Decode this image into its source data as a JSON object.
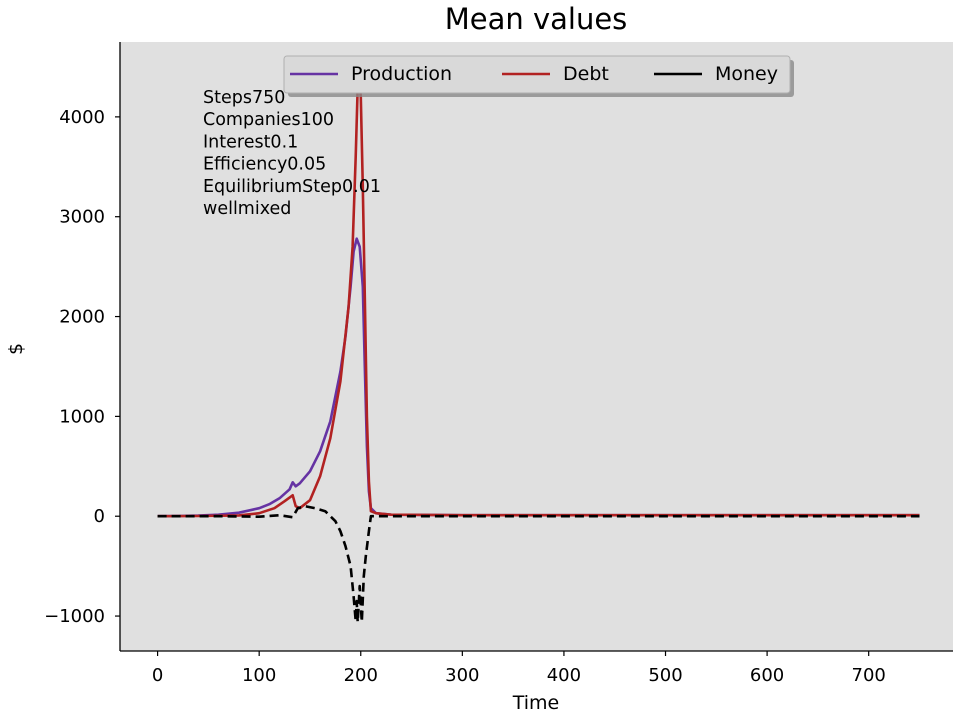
{
  "chart_data": {
    "type": "line",
    "title": "Mean values",
    "xlabel": "Time",
    "ylabel": "$",
    "xlim": [
      -37,
      783
    ],
    "ylim": [
      -1350,
      4750
    ],
    "xticks": [
      0,
      100,
      200,
      300,
      400,
      500,
      600,
      700
    ],
    "yticks": [
      -1000,
      0,
      1000,
      2000,
      3000,
      4000
    ],
    "xtick_labels": [
      "0",
      "100",
      "200",
      "300",
      "400",
      "500",
      "600",
      "700"
    ],
    "ytick_labels": [
      "−1000",
      "0",
      "1000",
      "2000",
      "3000",
      "4000"
    ],
    "background": "#e0e0e0",
    "grid": false,
    "legend_position": "top-center",
    "annotation_lines": [
      "Steps750",
      "Companies100",
      "Interest0.1",
      "Efficiency0.05",
      "EquilibriumStep0.01",
      "wellmixed"
    ],
    "series": [
      {
        "name": "Production",
        "color": "#6633a3",
        "style": "solid",
        "points": [
          [
            0,
            0
          ],
          [
            20,
            2
          ],
          [
            40,
            6
          ],
          [
            60,
            15
          ],
          [
            80,
            35
          ],
          [
            100,
            80
          ],
          [
            110,
            120
          ],
          [
            120,
            180
          ],
          [
            130,
            270
          ],
          [
            133,
            340
          ],
          [
            136,
            300
          ],
          [
            140,
            330
          ],
          [
            150,
            450
          ],
          [
            160,
            650
          ],
          [
            170,
            950
          ],
          [
            180,
            1450
          ],
          [
            185,
            1800
          ],
          [
            190,
            2300
          ],
          [
            193,
            2650
          ],
          [
            196,
            2780
          ],
          [
            199,
            2700
          ],
          [
            202,
            2300
          ],
          [
            204,
            1500
          ],
          [
            206,
            700
          ],
          [
            208,
            250
          ],
          [
            210,
            80
          ],
          [
            215,
            30
          ],
          [
            230,
            15
          ],
          [
            300,
            10
          ],
          [
            400,
            10
          ],
          [
            500,
            10
          ],
          [
            600,
            10
          ],
          [
            700,
            10
          ],
          [
            750,
            10
          ]
        ]
      },
      {
        "name": "Debt",
        "color": "#b22222",
        "style": "solid",
        "points": [
          [
            0,
            0
          ],
          [
            40,
            2
          ],
          [
            80,
            8
          ],
          [
            100,
            30
          ],
          [
            115,
            80
          ],
          [
            125,
            150
          ],
          [
            133,
            210
          ],
          [
            136,
            100
          ],
          [
            140,
            80
          ],
          [
            150,
            160
          ],
          [
            160,
            400
          ],
          [
            170,
            780
          ],
          [
            180,
            1350
          ],
          [
            188,
            2100
          ],
          [
            192,
            2700
          ],
          [
            195,
            3600
          ],
          [
            197,
            4300
          ],
          [
            198,
            4450
          ],
          [
            200,
            4200
          ],
          [
            202,
            3300
          ],
          [
            204,
            2200
          ],
          [
            206,
            1000
          ],
          [
            208,
            350
          ],
          [
            210,
            50
          ],
          [
            215,
            30
          ],
          [
            230,
            15
          ],
          [
            300,
            10
          ],
          [
            500,
            10
          ],
          [
            750,
            10
          ]
        ]
      },
      {
        "name": "Money",
        "color": "#000000",
        "style": "dashed",
        "points": [
          [
            0,
            0
          ],
          [
            60,
            0
          ],
          [
            100,
            -5
          ],
          [
            120,
            10
          ],
          [
            133,
            -10
          ],
          [
            138,
            80
          ],
          [
            145,
            100
          ],
          [
            155,
            80
          ],
          [
            165,
            50
          ],
          [
            170,
            0
          ],
          [
            175,
            -50
          ],
          [
            180,
            -150
          ],
          [
            185,
            -300
          ],
          [
            190,
            -500
          ],
          [
            193,
            -800
          ],
          [
            195,
            -1050
          ],
          [
            196,
            -850
          ],
          [
            197,
            -1060
          ],
          [
            199,
            -700
          ],
          [
            201,
            -1060
          ],
          [
            203,
            -600
          ],
          [
            205,
            -400
          ],
          [
            208,
            -150
          ],
          [
            210,
            0
          ],
          [
            215,
            0
          ],
          [
            300,
            0
          ],
          [
            500,
            0
          ],
          [
            750,
            0
          ]
        ]
      }
    ]
  }
}
